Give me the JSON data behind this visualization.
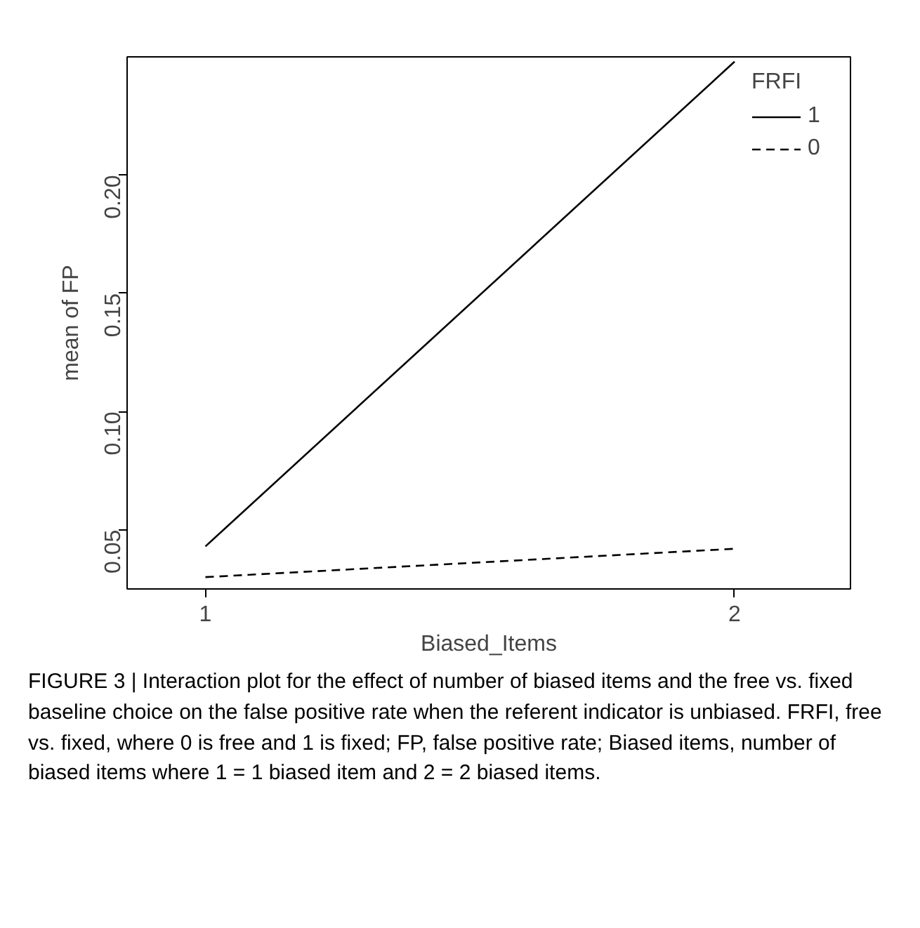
{
  "chart_data": {
    "type": "line",
    "xlabel": "Biased_Items",
    "ylabel": "mean of FP",
    "legend_title": "FRFI",
    "x": [
      1,
      2
    ],
    "xlim": [
      0.852,
      2.219
    ],
    "xticks": [
      1,
      2
    ],
    "ylim": [
      0.025,
      0.25
    ],
    "yticks": [
      0.05,
      {
        "value": 0.1,
        "label": "0.10"
      },
      0.15,
      {
        "value": 0.2,
        "label": "0.20"
      }
    ],
    "series": [
      {
        "name": "1",
        "color": "#000000",
        "values": [
          0.043,
          0.248
        ],
        "line_style": "solid"
      },
      {
        "name": "0",
        "color": "#000000",
        "values": [
          0.03,
          0.042
        ],
        "line_style": "dashed"
      }
    ],
    "legend": "top right",
    "grid": false,
    "annotations": [
      "FIGURE 3 | Interaction plot for the effect of number of biased items and the free vs. fixed baseline choice on the false positive rate when the referent indicator is unbiased. FRFI, free vs. fixed, where 0 is free and 1 is fixed; FP, false positive rate; Biased items, number of biased items where 1 = 1 biased item and 2 = 2 biased items."
    ]
  }
}
